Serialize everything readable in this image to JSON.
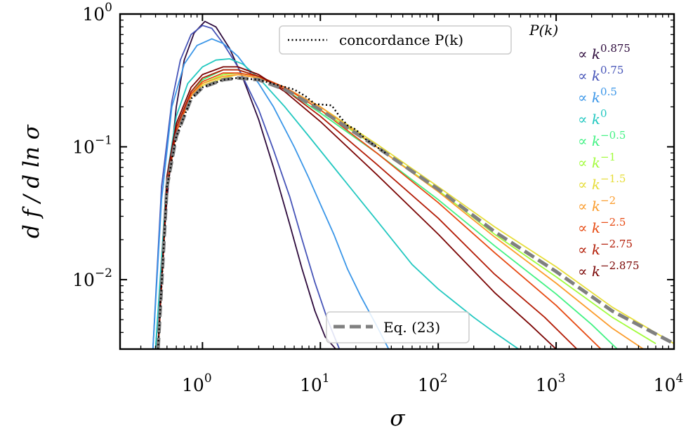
{
  "chart_data": {
    "type": "line",
    "title": "",
    "xlabel": "σ",
    "ylabel": "d f / d ln σ",
    "xscale": "log",
    "yscale": "log",
    "xlim": [
      0.2,
      10000
    ],
    "ylim": [
      0.003,
      1
    ],
    "grid": false,
    "x_ticks": [
      {
        "base": "10",
        "exp": "0",
        "value": 1
      },
      {
        "base": "10",
        "exp": "1",
        "value": 10
      },
      {
        "base": "10",
        "exp": "2",
        "value": 100
      },
      {
        "base": "10",
        "exp": "3",
        "value": 1000
      },
      {
        "base": "10",
        "exp": "4",
        "value": 10000
      }
    ],
    "y_ticks": [
      {
        "base": "10",
        "exp": "0",
        "value": 1
      },
      {
        "base": "10",
        "exp": "−1",
        "value": 0.1
      },
      {
        "base": "10",
        "exp": "−2",
        "value": 0.01
      }
    ],
    "pk_legend": {
      "header": "P(k)",
      "placement": "top-right",
      "entries": [
        {
          "prefix": "∝ k",
          "exp": "0.875",
          "color": "#2d0a3c"
        },
        {
          "prefix": "∝ k",
          "exp": "0.75",
          "color": "#4654b8"
        },
        {
          "prefix": "∝ k",
          "exp": "0.5",
          "color": "#3a96e8"
        },
        {
          "prefix": "∝ k",
          "exp": "0",
          "color": "#22c8c0"
        },
        {
          "prefix": "∝ k",
          "exp": "−0.5",
          "color": "#42f283"
        },
        {
          "prefix": "∝ k",
          "exp": "−1",
          "color": "#a2fc3c"
        },
        {
          "prefix": "∝ k",
          "exp": "−1.5",
          "color": "#e6dd38"
        },
        {
          "prefix": "∝ k",
          "exp": "−2",
          "color": "#fb9c2c"
        },
        {
          "prefix": "∝ k",
          "exp": "−2.5",
          "color": "#e74a12"
        },
        {
          "prefix": "∝ k",
          "exp": "−2.75",
          "color": "#b31c06"
        },
        {
          "prefix": "∝ k",
          "exp": "−2.875",
          "color": "#7a0403"
        }
      ]
    },
    "legend_concordance": {
      "label": "concordance P(k)",
      "placement": "top-center"
    },
    "legend_eq": {
      "label": "Eq. (23)",
      "placement": "bottom-center"
    },
    "series": [
      {
        "color": "#2d0a3c",
        "dash": "solid",
        "x": [
          0.4,
          0.5,
          0.6,
          0.7,
          0.85,
          1.05,
          1.3,
          1.7,
          2.2,
          3,
          4,
          5.5,
          7,
          9,
          11,
          13.5
        ],
        "y": [
          0.003,
          0.04,
          0.2,
          0.45,
          0.72,
          0.88,
          0.8,
          0.55,
          0.33,
          0.16,
          0.07,
          0.026,
          0.012,
          0.0058,
          0.0037,
          0.003
        ]
      },
      {
        "color": "#4654b8",
        "dash": "solid",
        "x": [
          0.38,
          0.45,
          0.55,
          0.65,
          0.8,
          1,
          1.2,
          1.5,
          2,
          3,
          4,
          5.5,
          7,
          9,
          11.5,
          14.5
        ],
        "y": [
          0.003,
          0.05,
          0.22,
          0.45,
          0.7,
          0.82,
          0.78,
          0.6,
          0.4,
          0.19,
          0.095,
          0.042,
          0.02,
          0.0095,
          0.005,
          0.003
        ]
      },
      {
        "color": "#3a96e8",
        "dash": "solid",
        "x": [
          0.38,
          0.45,
          0.55,
          0.7,
          0.9,
          1.2,
          1.5,
          2,
          3,
          4,
          6,
          8,
          10,
          13,
          17,
          22,
          30,
          38
        ],
        "y": [
          0.003,
          0.04,
          0.2,
          0.42,
          0.58,
          0.65,
          0.6,
          0.48,
          0.3,
          0.2,
          0.1,
          0.058,
          0.037,
          0.022,
          0.012,
          0.0075,
          0.0045,
          0.003
        ]
      },
      {
        "color": "#22c8c0",
        "dash": "solid",
        "x": [
          0.4,
          0.5,
          0.6,
          0.75,
          1,
          1.3,
          1.7,
          2.2,
          3,
          5,
          8,
          15,
          30,
          60,
          100,
          200,
          300,
          480
        ],
        "y": [
          0.003,
          0.06,
          0.17,
          0.3,
          0.4,
          0.45,
          0.46,
          0.42,
          0.33,
          0.2,
          0.12,
          0.06,
          0.028,
          0.013,
          0.0085,
          0.0052,
          0.004,
          0.003
        ]
      },
      {
        "color": "#42f283",
        "dash": "solid",
        "x": [
          0.42,
          0.5,
          0.6,
          0.8,
          1,
          1.5,
          2,
          3,
          5,
          10,
          30,
          100,
          300,
          1000,
          2000,
          3300
        ],
        "y": [
          0.003,
          0.05,
          0.14,
          0.26,
          0.32,
          0.38,
          0.38,
          0.34,
          0.27,
          0.18,
          0.09,
          0.04,
          0.018,
          0.0078,
          0.0046,
          0.003
        ]
      },
      {
        "color": "#a2fc3c",
        "dash": "solid",
        "x": [
          0.42,
          0.5,
          0.6,
          0.8,
          1,
          1.5,
          2,
          3,
          5,
          10,
          30,
          100,
          300,
          1000,
          3000,
          7000
        ],
        "y": [
          0.003,
          0.05,
          0.13,
          0.25,
          0.3,
          0.35,
          0.36,
          0.34,
          0.28,
          0.19,
          0.1,
          0.047,
          0.022,
          0.0105,
          0.0052,
          0.0033
        ]
      },
      {
        "color": "#e6dd38",
        "dash": "solid",
        "x": [
          0.42,
          0.5,
          0.6,
          0.8,
          1,
          1.5,
          2,
          3,
          5,
          10,
          30,
          100,
          300,
          1000,
          3000,
          10000
        ],
        "y": [
          0.003,
          0.05,
          0.13,
          0.24,
          0.29,
          0.33,
          0.35,
          0.33,
          0.28,
          0.2,
          0.105,
          0.05,
          0.025,
          0.0125,
          0.0062,
          0.0033
        ]
      },
      {
        "color": "#fb9c2c",
        "dash": "solid",
        "x": [
          0.42,
          0.5,
          0.6,
          0.8,
          1,
          1.5,
          2,
          3,
          5,
          10,
          30,
          100,
          300,
          1000,
          3000,
          5500
        ],
        "y": [
          0.003,
          0.05,
          0.13,
          0.24,
          0.3,
          0.34,
          0.35,
          0.33,
          0.28,
          0.2,
          0.1,
          0.046,
          0.021,
          0.0094,
          0.0043,
          0.003
        ]
      },
      {
        "color": "#e74a12",
        "dash": "solid",
        "x": [
          0.42,
          0.5,
          0.6,
          0.8,
          1,
          1.5,
          2,
          3,
          5,
          10,
          30,
          100,
          300,
          1000,
          2400
        ],
        "y": [
          0.003,
          0.05,
          0.13,
          0.25,
          0.31,
          0.36,
          0.36,
          0.34,
          0.28,
          0.19,
          0.09,
          0.038,
          0.016,
          0.0064,
          0.003
        ]
      },
      {
        "color": "#b31c06",
        "dash": "solid",
        "x": [
          0.42,
          0.5,
          0.6,
          0.8,
          1,
          1.5,
          2,
          3,
          5,
          10,
          30,
          100,
          300,
          800,
          1500
        ],
        "y": [
          0.003,
          0.05,
          0.14,
          0.26,
          0.33,
          0.38,
          0.38,
          0.34,
          0.27,
          0.17,
          0.074,
          0.029,
          0.011,
          0.0052,
          0.003
        ]
      },
      {
        "color": "#7a0403",
        "dash": "solid",
        "x": [
          0.42,
          0.5,
          0.6,
          0.8,
          1,
          1.5,
          2,
          3,
          5,
          10,
          30,
          100,
          300,
          600,
          1000
        ],
        "y": [
          0.003,
          0.06,
          0.15,
          0.28,
          0.35,
          0.4,
          0.4,
          0.35,
          0.26,
          0.155,
          0.062,
          0.022,
          0.008,
          0.0046,
          0.003
        ]
      },
      {
        "name": "Eq. (23)",
        "color": "#808080",
        "dash": "dashed",
        "x": [
          0.42,
          0.5,
          0.6,
          0.8,
          1,
          1.5,
          2,
          3,
          5,
          10,
          30,
          100,
          300,
          1000,
          3000,
          10000
        ],
        "y": [
          0.003,
          0.05,
          0.12,
          0.23,
          0.28,
          0.32,
          0.33,
          0.32,
          0.27,
          0.19,
          0.1,
          0.048,
          0.023,
          0.0115,
          0.0058,
          0.0033
        ]
      },
      {
        "name": "concordance P(k)",
        "color": "#000000",
        "dash": "dotted",
        "x": [
          0.42,
          0.5,
          0.6,
          0.8,
          1,
          1.5,
          2,
          3,
          4.5,
          6,
          7.5,
          9,
          10.5,
          12.5,
          14.5,
          17,
          20,
          24,
          30,
          37
        ],
        "y": [
          0.003,
          0.05,
          0.12,
          0.23,
          0.28,
          0.32,
          0.33,
          0.32,
          0.29,
          0.27,
          0.24,
          0.21,
          0.208,
          0.205,
          0.17,
          0.145,
          0.135,
          0.115,
          0.1,
          0.088
        ]
      }
    ]
  }
}
